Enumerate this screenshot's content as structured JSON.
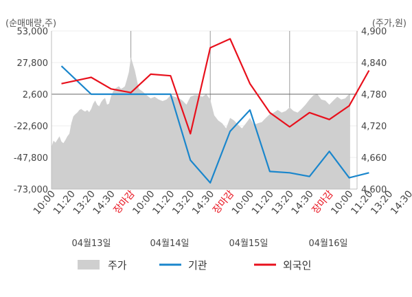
{
  "chart_data": {
    "type": "line",
    "left_axis_unit": "(순매매량,주)",
    "right_axis_unit": "(주가,원)",
    "left_axis": {
      "ticks": [
        "53,000",
        "27,800",
        "2,600",
        "-22,600",
        "-47,800",
        "-73,000"
      ],
      "ylim": [
        -73000,
        53000
      ]
    },
    "right_axis": {
      "ticks": [
        "4,900",
        "4,840",
        "4,780",
        "4,720",
        "4,660",
        "4,600"
      ],
      "ylim": [
        4600,
        4900
      ]
    },
    "x_ticks": [
      "10:00",
      "11:20",
      "13:20",
      "14:30",
      "장마감",
      "10:00",
      "11:20",
      "13:20",
      "14:30",
      "장마감",
      "10:00",
      "11:20",
      "13:20",
      "14:30",
      "장마감",
      "10:00",
      "11:20",
      "13:20",
      "14:30"
    ],
    "date_labels": [
      "04월13일",
      "04월14일",
      "04월15일",
      "04월16일"
    ],
    "legend": {
      "position": "bottom",
      "items": [
        "주가",
        "기관",
        "외국인"
      ]
    },
    "colors": {
      "price_area": "#cfcfcf",
      "institution": "#1a86cc",
      "foreign": "#e8101c",
      "red_label": "#e8101c"
    },
    "series": [
      {
        "name": "주가",
        "kind": "area",
        "axis": "right",
        "x": [
          0,
          0.1,
          0.2,
          0.3,
          0.4,
          0.5,
          0.6,
          0.7,
          0.8,
          0.9,
          1.0,
          1.1,
          1.2,
          1.3,
          1.4,
          1.5,
          1.6,
          1.7,
          1.8,
          1.9,
          2.0,
          2.1,
          2.2,
          2.3,
          2.4,
          2.5,
          2.6,
          2.7,
          2.8,
          2.9,
          3.0,
          3.1,
          3.2,
          3.3,
          3.4,
          3.5,
          3.6,
          3.7,
          3.8,
          3.9,
          4.0,
          4.2,
          4.4,
          4.6,
          4.8,
          5.0,
          5.2,
          5.4,
          5.6,
          5.8,
          6.0,
          6.2,
          6.4,
          6.6,
          6.8,
          7.0,
          7.2,
          7.4,
          7.6,
          7.8,
          8.0,
          8.2,
          8.4,
          8.6,
          8.8,
          9.0,
          9.2,
          9.4,
          9.6,
          9.8,
          10.0,
          10.2,
          10.4,
          10.6,
          10.8,
          11.0,
          11.2,
          11.4,
          11.6,
          11.8,
          12.0,
          12.2,
          12.4,
          12.6,
          12.8,
          13.0,
          13.2,
          13.4,
          13.6,
          13.8,
          14.0,
          14.2,
          14.4,
          14.6,
          14.8,
          15.0,
          15.05
        ],
        "values": [
          4680,
          4692,
          4688,
          4694,
          4700,
          4690,
          4687,
          4693,
          4700,
          4705,
          4725,
          4738,
          4742,
          4745,
          4750,
          4752,
          4749,
          4747,
          4750,
          4746,
          4752,
          4762,
          4768,
          4760,
          4757,
          4765,
          4770,
          4773,
          4760,
          4762,
          4776,
          4785,
          4790,
          4793,
          4795,
          4790,
          4792,
          4795,
          4808,
          4822,
          4850,
          4825,
          4790,
          4785,
          4778,
          4772,
          4775,
          4770,
          4767,
          4770,
          4778,
          4775,
          4773,
          4768,
          4760,
          4775,
          4778,
          4778,
          4775,
          4780,
          4770,
          4740,
          4730,
          4725,
          4715,
          4735,
          4730,
          4722,
          4715,
          4725,
          4735,
          4722,
          4725,
          4727,
          4735,
          4742,
          4745,
          4750,
          4745,
          4748,
          4755,
          4748,
          4745,
          4752,
          4760,
          4770,
          4778,
          4780,
          4770,
          4768,
          4760,
          4768,
          4775,
          4770,
          4772,
          4780,
          4780
        ]
      },
      {
        "name": "기관",
        "kind": "line",
        "axis": "left",
        "x": [
          0.5,
          2,
          4,
          6,
          7,
          8,
          9,
          10,
          11,
          12,
          13,
          14,
          15,
          16
        ],
        "values": [
          25000,
          2600,
          2600,
          2600,
          -50000,
          -68000,
          -27000,
          -10000,
          -59000,
          -60000,
          -63000,
          -43000,
          -64000,
          -60000
        ]
      },
      {
        "name": "외국인",
        "kind": "line",
        "axis": "left",
        "x": [
          0.5,
          2,
          3,
          4,
          5,
          6,
          7,
          8,
          9,
          10,
          11,
          12,
          13,
          14,
          15,
          16
        ],
        "values": [
          4800,
          4812,
          4790,
          4783,
          4818,
          4815,
          4705,
          4868,
          4885,
          4800,
          4745,
          4718,
          4745,
          4732,
          4758,
          4825
        ]
      }
    ]
  }
}
